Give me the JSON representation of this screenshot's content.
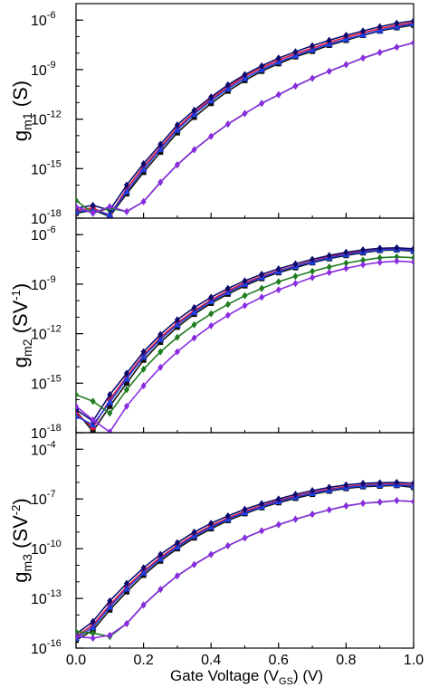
{
  "chart_data": [
    {
      "type": "line",
      "panel": "top",
      "ylabel": {
        "base": "g",
        "sub": "m1",
        "unit": "(S)"
      },
      "yscale": "log",
      "ylim": [
        1e-18,
        1e-05
      ],
      "yticks": [
        {
          "base": "10",
          "exp": "-18",
          "v": -18
        },
        {
          "base": "10",
          "exp": "-15",
          "v": -15
        },
        {
          "base": "10",
          "exp": "-12",
          "v": -12
        },
        {
          "base": "10",
          "exp": "-9",
          "v": -9
        },
        {
          "base": "10",
          "exp": "-6",
          "v": -6
        }
      ],
      "xlim": [
        0,
        1
      ],
      "x": [
        0,
        0.05,
        0.1,
        0.15,
        0.2,
        0.25,
        0.3,
        0.35,
        0.4,
        0.45,
        0.5,
        0.55,
        0.6,
        0.65,
        0.7,
        0.75,
        0.8,
        0.85,
        0.9,
        0.95,
        1.0
      ],
      "series": [
        {
          "color": "#111111",
          "marker": "square",
          "values": [
            2e-18,
            3e-18,
            1.3e-18,
            3e-17,
            6e-16,
            1e-14,
            1.5e-13,
            1.3e-12,
            9e-12,
            5e-11,
            2.2e-10,
            8e-10,
            2.3e-09,
            6e-09,
            1.3e-08,
            3e-08,
            6e-08,
            1.2e-07,
            2.2e-07,
            3.5e-07,
            5e-07
          ]
        },
        {
          "color": "#e0143c",
          "marker": "circle",
          "values": [
            3e-18,
            4e-18,
            1.5e-18,
            6e-17,
            1.3e-15,
            2e-14,
            3e-13,
            2.5e-12,
            1.7e-11,
            9e-11,
            4e-10,
            1.3e-09,
            3.8e-09,
            9e-09,
            2e-08,
            4.5e-08,
            9e-08,
            1.7e-07,
            3e-07,
            5e-07,
            7e-07
          ]
        },
        {
          "color": "#1f3fe0",
          "marker": "triangle",
          "values": [
            2.5e-18,
            3e-18,
            1.6e-18,
            4e-17,
            9e-16,
            1.5e-14,
            2.2e-13,
            2e-12,
            1.3e-11,
            7e-11,
            3e-10,
            1e-09,
            2.9e-09,
            7e-09,
            1.6e-08,
            3.5e-08,
            7e-08,
            1.3e-07,
            2.4e-07,
            4e-07,
            6e-07
          ]
        },
        {
          "color": "#0b0b6e",
          "marker": "diamond",
          "values": [
            4e-18,
            6e-18,
            3e-18,
            1e-16,
            2e-15,
            3e-14,
            4.5e-13,
            3.5e-12,
            2.2e-11,
            1.2e-10,
            5e-10,
            1.7e-09,
            5e-09,
            1.2e-08,
            2.8e-08,
            6e-08,
            1.2e-07,
            2.2e-07,
            4e-07,
            6.5e-07,
            9e-07
          ]
        },
        {
          "color": "#1e7d1e",
          "marker": "diamond",
          "values": [
            1.2e-17,
            2e-18,
            4e-18,
            2.5e-18,
            1e-17,
            1.5e-16,
            1.7e-15,
            1.4e-14,
            9e-14,
            5e-13,
            2.2e-12,
            9e-12,
            3e-11,
            1e-10,
            3e-10,
            8e-10,
            2e-09,
            5e-09,
            1.1e-08,
            2.3e-08,
            4.2e-08
          ]
        },
        {
          "color": "#8a2be2",
          "marker": "diamond",
          "values": [
            5e-18,
            2e-18,
            5e-18,
            2.5e-18,
            1e-17,
            1.5e-16,
            1.7e-15,
            1.4e-14,
            9e-14,
            5e-13,
            2.2e-12,
            9e-12,
            3e-11,
            1e-10,
            3e-10,
            8e-10,
            2e-09,
            5e-09,
            1.1e-08,
            2.3e-08,
            4.2e-08
          ]
        }
      ]
    },
    {
      "type": "line",
      "panel": "middle",
      "ylabel": {
        "base": "g",
        "sub": "m2",
        "unit": "(SV",
        "unit_exp": "-1",
        "unit_end": ")"
      },
      "yscale": "log",
      "ylim": [
        1e-18,
        1e-05
      ],
      "yticks": [
        {
          "base": "10",
          "exp": "-18",
          "v": -18
        },
        {
          "base": "10",
          "exp": "-15",
          "v": -15
        },
        {
          "base": "10",
          "exp": "-12",
          "v": -12
        },
        {
          "base": "10",
          "exp": "-9",
          "v": -9
        },
        {
          "base": "10",
          "exp": "-6",
          "v": -6
        }
      ],
      "xlim": [
        0,
        1
      ],
      "x": [
        0,
        0.05,
        0.1,
        0.15,
        0.2,
        0.25,
        0.3,
        0.35,
        0.4,
        0.45,
        0.5,
        0.55,
        0.6,
        0.65,
        0.7,
        0.75,
        0.8,
        0.85,
        0.9,
        0.95,
        1.0
      ],
      "series": [
        {
          "color": "#111111",
          "marker": "square",
          "values": [
            2e-17,
            1.2e-18,
            4e-17,
            1e-15,
            2.5e-14,
            3e-13,
            2.5e-12,
            1.5e-11,
            7e-11,
            2.5e-10,
            8e-10,
            2.2e-09,
            5e-09,
            1e-08,
            2e-08,
            3.5e-08,
            5.5e-08,
            8e-08,
            1.1e-07,
            1.2e-07,
            1e-07
          ]
        },
        {
          "color": "#e0143c",
          "marker": "circle",
          "values": [
            1.5e-17,
            2e-18,
            1e-16,
            2.5e-15,
            5e-14,
            6e-13,
            4.5e-12,
            2.5e-11,
            1.1e-10,
            4e-10,
            1.2e-09,
            3e-09,
            6.5e-09,
            1.3e-08,
            2.5e-08,
            4.5e-08,
            7e-08,
            1e-07,
            1.3e-07,
            1.4e-07,
            1.2e-07
          ]
        },
        {
          "color": "#1f3fe0",
          "marker": "triangle",
          "values": [
            1e-17,
            3e-18,
            7e-17,
            1.8e-15,
            4e-14,
            4.5e-13,
            3.5e-12,
            2e-11,
            9e-11,
            3.2e-10,
            1e-09,
            2.6e-09,
            5.8e-09,
            1.2e-08,
            2.2e-08,
            4e-08,
            6.2e-08,
            9e-08,
            1.2e-07,
            1.3e-07,
            1.1e-07
          ]
        },
        {
          "color": "#0b0b6e",
          "marker": "diamond",
          "values": [
            2.5e-17,
            5e-18,
            2e-16,
            4e-15,
            8e-14,
            9e-13,
            7e-12,
            3.8e-11,
            1.6e-10,
            5.5e-10,
            1.6e-09,
            4e-09,
            8.5e-09,
            1.7e-08,
            3.2e-08,
            5.5e-08,
            8.5e-08,
            1.2e-07,
            1.5e-07,
            1.6e-07,
            1.4e-07
          ]
        },
        {
          "color": "#1e7d1e",
          "marker": "diamond",
          "values": [
            2e-16,
            8e-17,
            1.5e-17,
            4e-16,
            7e-15,
            8e-14,
            6e-13,
            3.5e-12,
            1.6e-11,
            6e-11,
            2e-10,
            5.5e-10,
            1.4e-09,
            3e-09,
            6e-09,
            1.1e-08,
            1.9e-08,
            2.8e-08,
            4e-08,
            4.5e-08,
            4e-08
          ]
        },
        {
          "color": "#8a2be2",
          "marker": "diamond",
          "values": [
            4e-17,
            6e-18,
            1.1e-18,
            4e-17,
            7e-16,
            9e-15,
            8e-14,
            5.5e-13,
            3e-12,
            1.3e-11,
            5e-11,
            1.6e-10,
            4.5e-10,
            1.1e-09,
            2.5e-09,
            5e-09,
            9e-09,
            1.5e-08,
            2.1e-08,
            2.5e-08,
            2.2e-08
          ]
        }
      ]
    },
    {
      "type": "line",
      "panel": "bottom",
      "ylabel": {
        "base": "g",
        "sub": "m3",
        "unit": "(SV",
        "unit_exp": "-2",
        "unit_end": ")"
      },
      "yscale": "log",
      "ylim": [
        1e-16,
        0.001
      ],
      "yticks": [
        {
          "base": "10",
          "exp": "-16",
          "v": -16
        },
        {
          "base": "10",
          "exp": "-13",
          "v": -13
        },
        {
          "base": "10",
          "exp": "-10",
          "v": -10
        },
        {
          "base": "10",
          "exp": "-7",
          "v": -7
        },
        {
          "base": "10",
          "exp": "-4",
          "v": -4
        }
      ],
      "xlim": [
        0,
        1
      ],
      "xlabel": {
        "pre": "Gate Voltage (V",
        "sub": "GS",
        "post": ") (V)"
      },
      "xticks": [
        "0.0",
        "0.2",
        "0.4",
        "0.6",
        "0.8",
        "1.0"
      ],
      "x": [
        0,
        0.05,
        0.1,
        0.15,
        0.2,
        0.25,
        0.3,
        0.35,
        0.4,
        0.45,
        0.5,
        0.55,
        0.6,
        0.65,
        0.7,
        0.75,
        0.8,
        0.85,
        0.9,
        0.95,
        1.0
      ],
      "series": [
        {
          "color": "#111111",
          "marker": "square",
          "values": [
            3e-16,
            1.2e-15,
            2e-14,
            2.5e-13,
            2.5e-12,
            1.8e-11,
            1e-10,
            4.5e-10,
            1.6e-09,
            5e-09,
            1.3e-08,
            3e-08,
            6e-08,
            1.1e-07,
            1.9e-07,
            3e-07,
            4.3e-07,
            5.5e-07,
            6e-07,
            6.5e-07,
            5e-07
          ]
        },
        {
          "color": "#e0143c",
          "marker": "circle",
          "values": [
            5e-16,
            2.5e-15,
            4e-14,
            5e-13,
            4.5e-12,
            3e-11,
            1.6e-10,
            7e-10,
            2.4e-09,
            7e-09,
            1.8e-08,
            4e-08,
            8e-08,
            1.5e-07,
            2.5e-07,
            3.9e-07,
            5.5e-07,
            7e-07,
            7.5e-07,
            8e-07,
            7e-07
          ]
        },
        {
          "color": "#1f3fe0",
          "marker": "triangle",
          "values": [
            4e-16,
            1.8e-15,
            3e-14,
            3.8e-13,
            3.5e-12,
            2.4e-11,
            1.3e-10,
            5.8e-10,
            2e-09,
            6e-09,
            1.5e-08,
            3.4e-08,
            7e-08,
            1.3e-07,
            2.2e-07,
            3.4e-07,
            4.9e-07,
            6.2e-07,
            6.8e-07,
            7.2e-07,
            6e-07
          ]
        },
        {
          "color": "#0b0b6e",
          "marker": "diamond",
          "values": [
            7e-16,
            4e-15,
            7e-14,
            8e-13,
            7e-12,
            4.5e-11,
            2.3e-10,
            1e-09,
            3.4e-09,
            9.5e-09,
            2.4e-08,
            5.2e-08,
            1e-07,
            1.9e-07,
            3.2e-07,
            5e-07,
            7e-07,
            8.8e-07,
            9.5e-07,
            1e-06,
            9e-07
          ]
        },
        {
          "color": "#1e7d1e",
          "marker": "diamond",
          "values": [
            1e-15,
            8e-16,
            5e-16,
            3e-15,
            4e-14,
            3.5e-13,
            2.3e-12,
            1.1e-11,
            4.5e-11,
            1.5e-10,
            4.5e-10,
            1.2e-09,
            2.8e-09,
            6e-09,
            1.2e-08,
            2.2e-08,
            3.8e-08,
            5.5e-08,
            6.5e-08,
            8e-08,
            7e-08
          ]
        },
        {
          "color": "#8a2be2",
          "marker": "diamond",
          "values": [
            5e-16,
            4e-16,
            6e-16,
            3e-15,
            4e-14,
            3.5e-13,
            2.3e-12,
            1.1e-11,
            4.5e-11,
            1.5e-10,
            4.5e-10,
            1.2e-09,
            2.8e-09,
            6e-09,
            1.2e-08,
            2.2e-08,
            3.8e-08,
            5.5e-08,
            6.5e-08,
            8e-08,
            7e-08
          ]
        }
      ]
    }
  ]
}
